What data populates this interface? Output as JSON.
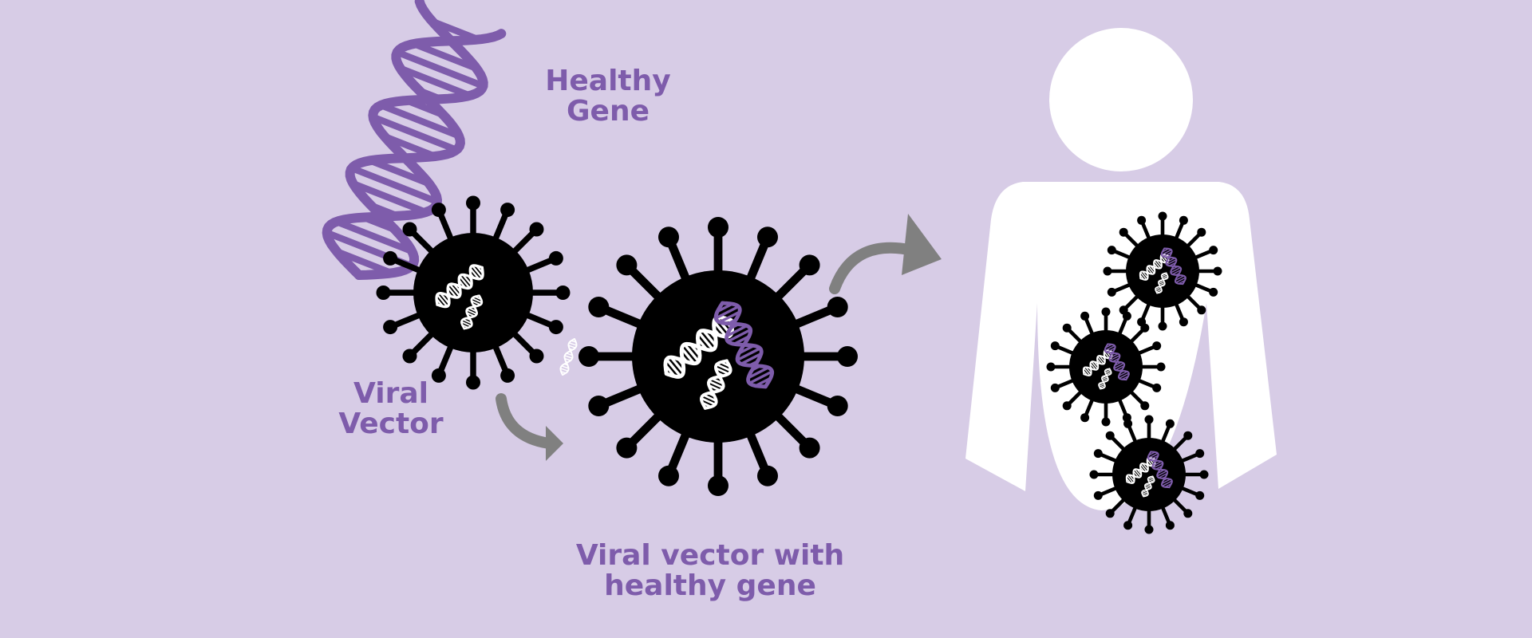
{
  "colors": {
    "background": "#d7cce6",
    "purple": "#7e5cab",
    "virus": "#000000",
    "arrow": "#808080",
    "body": "#ffffff"
  },
  "labels": {
    "healthy_gene": [
      "Healthy",
      "Gene"
    ],
    "viral_vector": [
      "Viral",
      "Vector"
    ],
    "combined": [
      "Viral vector with",
      "healthy gene"
    ]
  },
  "icons": [
    "dna-helix-icon",
    "virus-icon",
    "curved-arrow-icon",
    "human-silhouette-icon"
  ]
}
